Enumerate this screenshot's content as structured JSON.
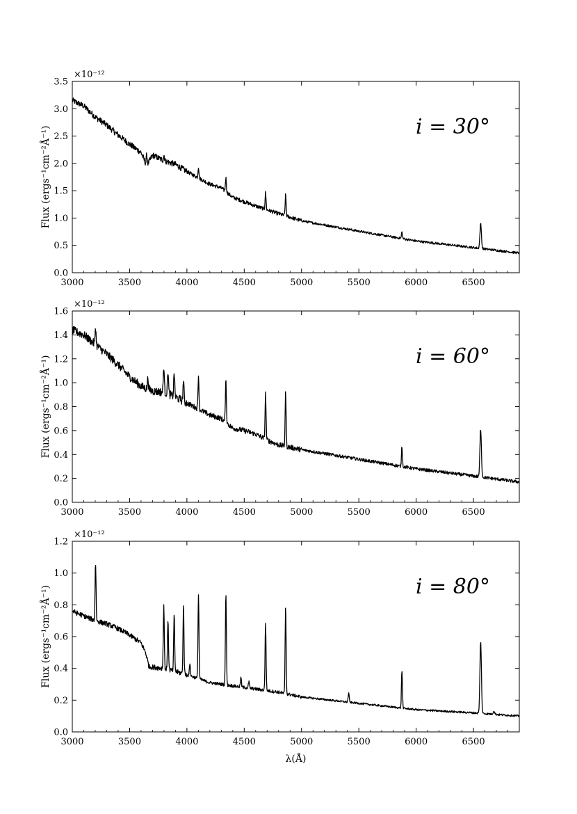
{
  "chart_data": [
    {
      "type": "line",
      "annotation": "i = 30°",
      "ylabel": "Flux (ergs⁻¹cm⁻²Å⁻¹)",
      "xlabel": "",
      "y_multiplier": "×10⁻¹²",
      "xlim": [
        3000,
        6900
      ],
      "ylim": [
        0.0,
        3.5
      ],
      "xticks": [
        3000,
        3500,
        4000,
        4500,
        5000,
        5500,
        6000,
        6500
      ],
      "yticks": [
        "0.0",
        "0.5",
        "1.0",
        "1.5",
        "2.0",
        "2.5",
        "3.0",
        "3.5"
      ],
      "series": [
        {
          "continuum": [
            [
              3000,
              3.15
            ],
            [
              3100,
              3.05
            ],
            [
              3200,
              2.85
            ],
            [
              3300,
              2.7
            ],
            [
              3400,
              2.52
            ],
            [
              3500,
              2.35
            ],
            [
              3600,
              2.2
            ],
            [
              3650,
              1.95
            ],
            [
              3700,
              2.15
            ],
            [
              3800,
              2.05
            ],
            [
              3900,
              1.98
            ],
            [
              4000,
              1.85
            ],
            [
              4200,
              1.62
            ],
            [
              4300,
              1.55
            ],
            [
              4400,
              1.38
            ],
            [
              4500,
              1.3
            ],
            [
              4600,
              1.22
            ],
            [
              4700,
              1.15
            ],
            [
              4800,
              1.08
            ],
            [
              5000,
              0.95
            ],
            [
              5500,
              0.76
            ],
            [
              6000,
              0.58
            ],
            [
              6500,
              0.46
            ],
            [
              6900,
              0.36
            ]
          ],
          "emission_lines": [
            [
              3650,
              0.2
            ],
            [
              3800,
              0.1
            ],
            [
              4101,
              0.2
            ],
            [
              4340,
              0.25
            ],
            [
              4686,
              0.3
            ],
            [
              4861,
              0.38
            ],
            [
              5876,
              0.12
            ],
            [
              6563,
              0.45
            ]
          ],
          "noise": 0.035
        }
      ]
    },
    {
      "type": "line",
      "annotation": "i = 60°",
      "ylabel": "Flux (ergs⁻¹cm⁻²Å⁻¹)",
      "xlabel": "",
      "y_multiplier": "×10⁻¹²",
      "xlim": [
        3000,
        6900
      ],
      "ylim": [
        0.0,
        1.6
      ],
      "xticks": [
        3000,
        3500,
        4000,
        4500,
        5000,
        5500,
        6000,
        6500
      ],
      "yticks": [
        "0.0",
        "0.2",
        "0.4",
        "0.6",
        "0.8",
        "1.0",
        "1.2",
        "1.4",
        "1.6"
      ],
      "series": [
        {
          "continuum": [
            [
              3000,
              1.44
            ],
            [
              3100,
              1.4
            ],
            [
              3200,
              1.32
            ],
            [
              3300,
              1.24
            ],
            [
              3400,
              1.15
            ],
            [
              3500,
              1.05
            ],
            [
              3600,
              0.97
            ],
            [
              3700,
              0.93
            ],
            [
              3800,
              0.92
            ],
            [
              3900,
              0.88
            ],
            [
              4000,
              0.83
            ],
            [
              4200,
              0.73
            ],
            [
              4300,
              0.7
            ],
            [
              4400,
              0.62
            ],
            [
              4500,
              0.6
            ],
            [
              4600,
              0.57
            ],
            [
              4700,
              0.52
            ],
            [
              4800,
              0.48
            ],
            [
              5000,
              0.44
            ],
            [
              5500,
              0.36
            ],
            [
              6000,
              0.28
            ],
            [
              6500,
              0.22
            ],
            [
              6900,
              0.17
            ]
          ],
          "emission_lines": [
            [
              3203,
              0.15
            ],
            [
              3660,
              0.1
            ],
            [
              3798,
              0.22
            ],
            [
              3835,
              0.2
            ],
            [
              3889,
              0.2
            ],
            [
              3970,
              0.18
            ],
            [
              4101,
              0.28
            ],
            [
              4340,
              0.35
            ],
            [
              4686,
              0.38
            ],
            [
              4861,
              0.45
            ],
            [
              5876,
              0.17
            ],
            [
              6563,
              0.4
            ]
          ],
          "noise": 0.022
        }
      ]
    },
    {
      "type": "line",
      "annotation": "i = 80°",
      "ylabel": "Flux (ergs⁻¹cm⁻²Å⁻¹)",
      "xlabel": "λ(Å)",
      "y_multiplier": "×10⁻¹²",
      "xlim": [
        3000,
        6900
      ],
      "ylim": [
        0.0,
        1.2
      ],
      "xticks": [
        3000,
        3500,
        4000,
        4500,
        5000,
        5500,
        6000,
        6500
      ],
      "yticks": [
        "0.0",
        "0.2",
        "0.4",
        "0.6",
        "0.8",
        "1.0",
        "1.2"
      ],
      "series": [
        {
          "continuum": [
            [
              3000,
              0.76
            ],
            [
              3100,
              0.73
            ],
            [
              3200,
              0.7
            ],
            [
              3300,
              0.68
            ],
            [
              3400,
              0.65
            ],
            [
              3500,
              0.61
            ],
            [
              3600,
              0.56
            ],
            [
              3640,
              0.5
            ],
            [
              3670,
              0.41
            ],
            [
              3800,
              0.4
            ],
            [
              3900,
              0.38
            ],
            [
              4000,
              0.36
            ],
            [
              4200,
              0.31
            ],
            [
              4400,
              0.29
            ],
            [
              4600,
              0.27
            ],
            [
              4800,
              0.25
            ],
            [
              5000,
              0.22
            ],
            [
              5500,
              0.18
            ],
            [
              6000,
              0.14
            ],
            [
              6500,
              0.12
            ],
            [
              6900,
              0.1
            ]
          ],
          "emission_lines": [
            [
              3203,
              0.37
            ],
            [
              3798,
              0.4
            ],
            [
              3835,
              0.32
            ],
            [
              3889,
              0.35
            ],
            [
              3970,
              0.43
            ],
            [
              4026,
              0.08
            ],
            [
              4101,
              0.53
            ],
            [
              4340,
              0.58
            ],
            [
              4471,
              0.06
            ],
            [
              4541,
              0.04
            ],
            [
              4686,
              0.43
            ],
            [
              4861,
              0.55
            ],
            [
              5411,
              0.06
            ],
            [
              5876,
              0.24
            ],
            [
              6563,
              0.45
            ],
            [
              6678,
              0.02
            ]
          ],
          "noise": 0.01
        }
      ]
    }
  ]
}
